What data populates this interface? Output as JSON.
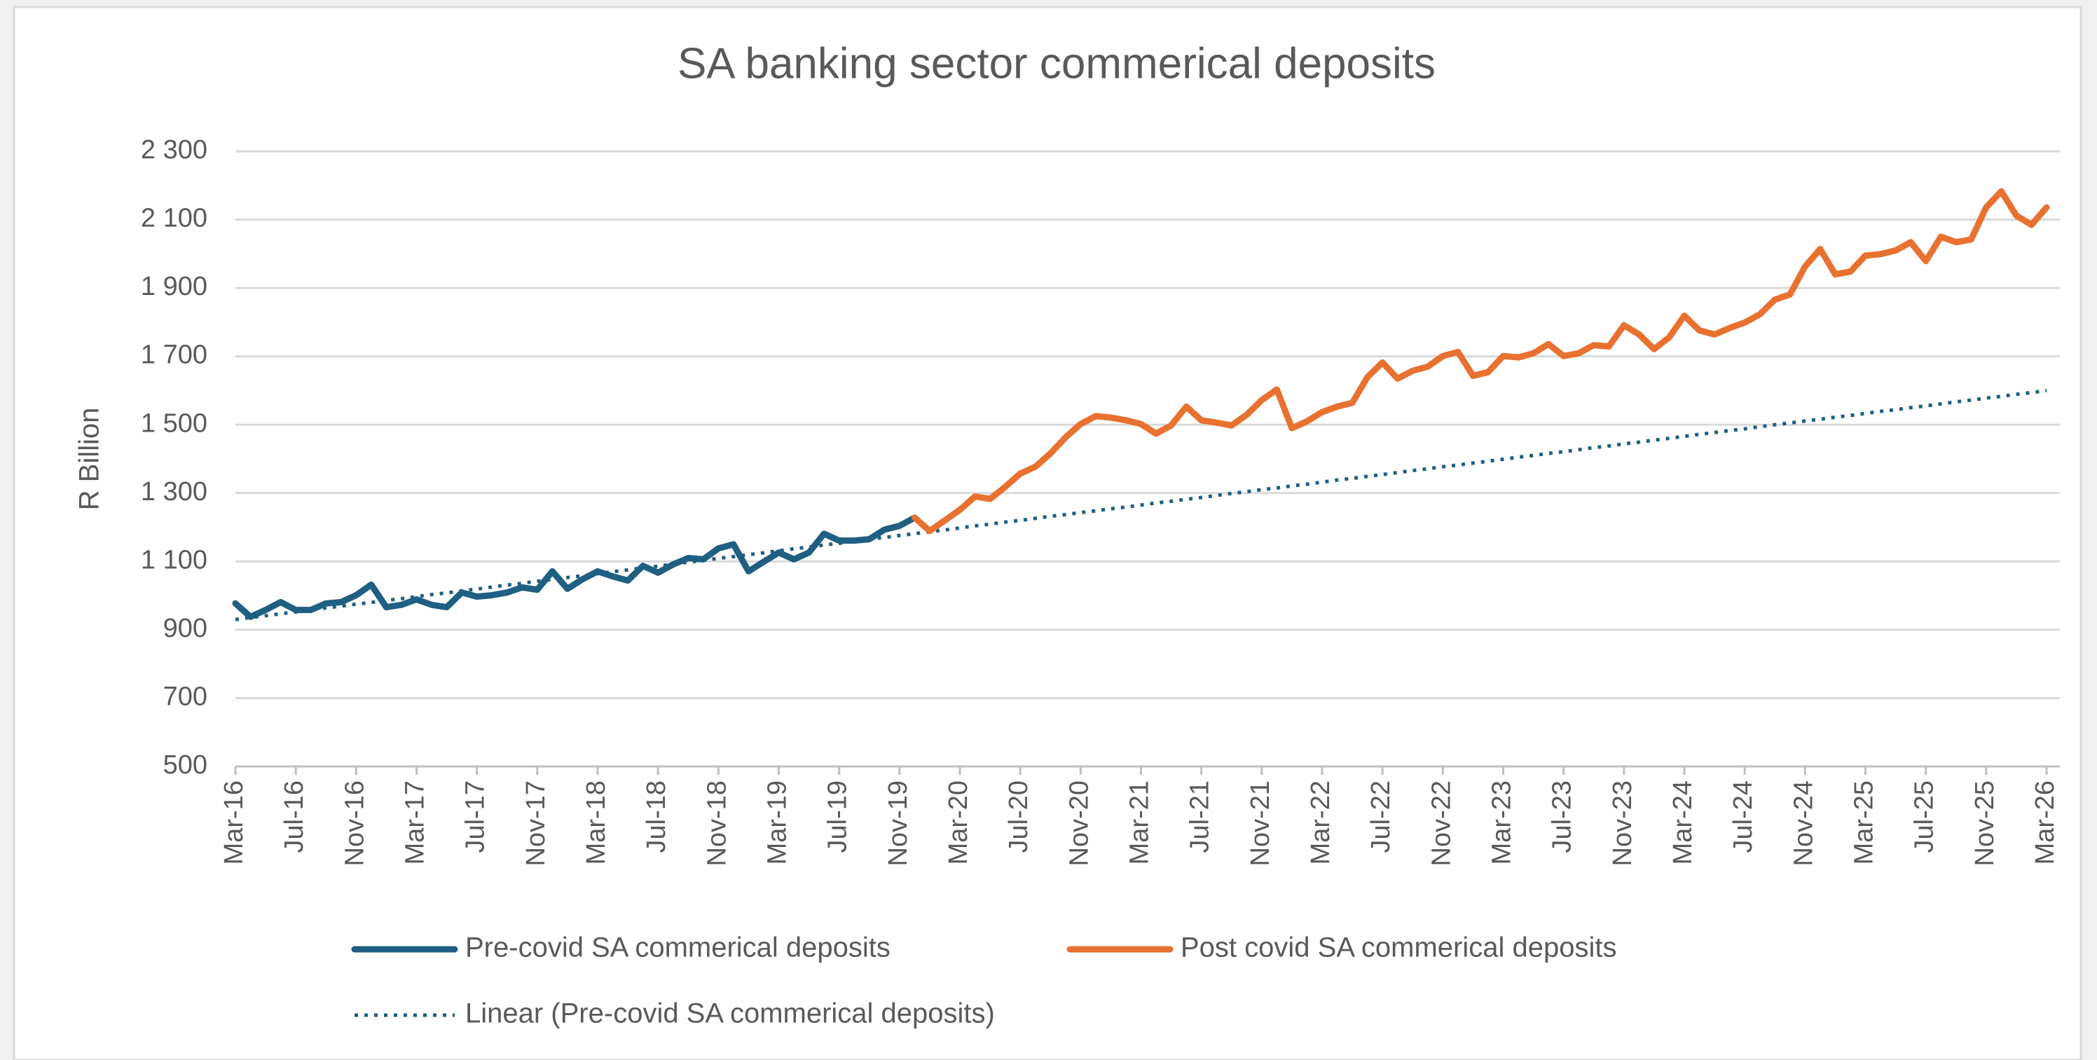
{
  "chart_data": {
    "type": "line",
    "title": "SA banking sector commerical deposits",
    "y_label": "R Billion",
    "categories": [
      "Mar-16",
      null,
      null,
      null,
      "Jul-16",
      null,
      null,
      null,
      "Nov-16",
      null,
      null,
      null,
      "Mar-17",
      null,
      null,
      null,
      "Jul-17",
      null,
      null,
      null,
      "Nov-17",
      null,
      null,
      null,
      "Mar-18",
      null,
      null,
      null,
      "Jul-18",
      null,
      null,
      null,
      "Nov-18",
      null,
      null,
      null,
      "Mar-19",
      null,
      null,
      null,
      "Jul-19",
      null,
      null,
      null,
      "Nov-19",
      null,
      null,
      null,
      "Mar-20",
      null,
      null,
      null,
      "Jul-20",
      null,
      null,
      null,
      "Nov-20",
      null,
      null,
      null,
      "Mar-21",
      null,
      null,
      null,
      "Jul-21",
      null,
      null,
      null,
      "Nov-21",
      null,
      null,
      null,
      "Mar-22",
      null,
      null,
      null,
      "Jul-22",
      null,
      null,
      null,
      "Nov-22",
      null,
      null,
      null,
      "Mar-23",
      null,
      null,
      null,
      "Jul-23",
      null,
      null,
      null,
      "Nov-23",
      null,
      null,
      null,
      "Mar-24",
      null,
      null,
      null,
      "Jul-24",
      null,
      null,
      null,
      "Nov-24",
      null,
      null,
      null,
      "Mar-25",
      null,
      null,
      null,
      "Jul-25",
      null,
      null,
      null,
      "Nov-25",
      null,
      null,
      null,
      "Mar-26"
    ],
    "series": [
      {
        "name": "Pre-covid SA commerical deposits",
        "color": "#1f5f82",
        "dash": "solid",
        "values": [
          977,
          938,
          958,
          981,
          958,
          958,
          977,
          981,
          1001,
          1032,
          966,
          973,
          989,
          973,
          966,
          1009,
          997,
          1001,
          1009,
          1024,
          1017,
          1071,
          1020,
          1048,
          1071,
          1056,
          1044,
          1087,
          1067,
          1091,
          1110,
          1106,
          1138,
          1150,
          1071,
          1099,
          1126,
          1106,
          1126,
          1181,
          1161,
          1161,
          1165,
          1193,
          1204,
          1228,
          null,
          null,
          null,
          null,
          null,
          null,
          null,
          null,
          null,
          null,
          null,
          null,
          null,
          null,
          null,
          null,
          null,
          null,
          null,
          null,
          null,
          null,
          null,
          null,
          null,
          null,
          null,
          null,
          null,
          null,
          null,
          null,
          null,
          null,
          null,
          null,
          null,
          null,
          null,
          null,
          null,
          null,
          null,
          null,
          null,
          null,
          null,
          null,
          null,
          null,
          null,
          null,
          null,
          null,
          null,
          null,
          null,
          null,
          null,
          null,
          null,
          null,
          null,
          null,
          null,
          null,
          null,
          null,
          null,
          null,
          null,
          null,
          null,
          null,
          null
        ]
      },
      {
        "name": "Post covid SA commerical deposits",
        "color": "#e9712f",
        "dash": "solid",
        "values": [
          null,
          null,
          null,
          null,
          null,
          null,
          null,
          null,
          null,
          null,
          null,
          null,
          null,
          null,
          null,
          null,
          null,
          null,
          null,
          null,
          null,
          null,
          null,
          null,
          null,
          null,
          null,
          null,
          null,
          null,
          null,
          null,
          null,
          null,
          null,
          null,
          null,
          null,
          null,
          null,
          null,
          null,
          null,
          null,
          null,
          1228,
          1189,
          1220,
          1251,
          1290,
          1283,
          1318,
          1357,
          1377,
          1416,
          1463,
          1502,
          1525,
          1521,
          1513,
          1502,
          1474,
          1498,
          1553,
          1513,
          1506,
          1498,
          1529,
          1572,
          1603,
          1490,
          1510,
          1537,
          1553,
          1564,
          1639,
          1682,
          1635,
          1658,
          1670,
          1701,
          1713,
          1643,
          1654,
          1701,
          1697,
          1709,
          1736,
          1701,
          1709,
          1733,
          1729,
          1791,
          1764,
          1721,
          1756,
          1819,
          1776,
          1764,
          1783,
          1799,
          1823,
          1866,
          1881,
          1963,
          2014,
          1940,
          1948,
          1995,
          1999,
          2010,
          2034,
          1979,
          2050,
          2034,
          2042,
          2136,
          2183,
          2112,
          2085,
          2136
        ]
      },
      {
        "name": "Linear (Pre-covid SA commerical deposits)",
        "color": "#1f5f82",
        "dash": "dotted",
        "values": [
          930,
          936,
          941,
          947,
          952,
          958,
          964,
          969,
          975,
          980,
          986,
          991,
          997,
          1003,
          1008,
          1014,
          1019,
          1025,
          1031,
          1036,
          1042,
          1047,
          1053,
          1058,
          1064,
          1070,
          1075,
          1081,
          1086,
          1092,
          1098,
          1103,
          1109,
          1114,
          1120,
          1125,
          1131,
          1137,
          1142,
          1148,
          1153,
          1159,
          1165,
          1170,
          1176,
          1181,
          1187,
          1192,
          1198,
          1204,
          1209,
          1215,
          1220,
          1226,
          1232,
          1237,
          1243,
          1248,
          1254,
          1259,
          1265,
          1271,
          1276,
          1282,
          1287,
          1293,
          1299,
          1304,
          1310,
          1315,
          1321,
          1326,
          1332,
          1338,
          1343,
          1349,
          1354,
          1360,
          1366,
          1371,
          1377,
          1382,
          1388,
          1393,
          1399,
          1405,
          1410,
          1416,
          1421,
          1427,
          1433,
          1438,
          1444,
          1449,
          1455,
          1460,
          1466,
          1472,
          1477,
          1483,
          1488,
          1494,
          1500,
          1505,
          1511,
          1516,
          1522,
          1527,
          1533,
          1539,
          1544,
          1550,
          1555,
          1561,
          1567,
          1572,
          1578,
          1583,
          1589,
          1594,
          1600
        ]
      }
    ],
    "ylim": [
      500,
      2300
    ],
    "yticks": [
      500,
      700,
      900,
      {
        "value": 1100,
        "label": "1 100"
      },
      {
        "value": 1300,
        "label": "1 300"
      },
      {
        "value": 1500,
        "label": "1 500"
      },
      {
        "value": 1700,
        "label": "1 700"
      },
      {
        "value": 1900,
        "label": "1 900"
      },
      {
        "value": 2100,
        "label": "2 100"
      },
      {
        "value": 2300,
        "label": "2 300"
      }
    ],
    "grid": true,
    "legend": "bottom"
  }
}
